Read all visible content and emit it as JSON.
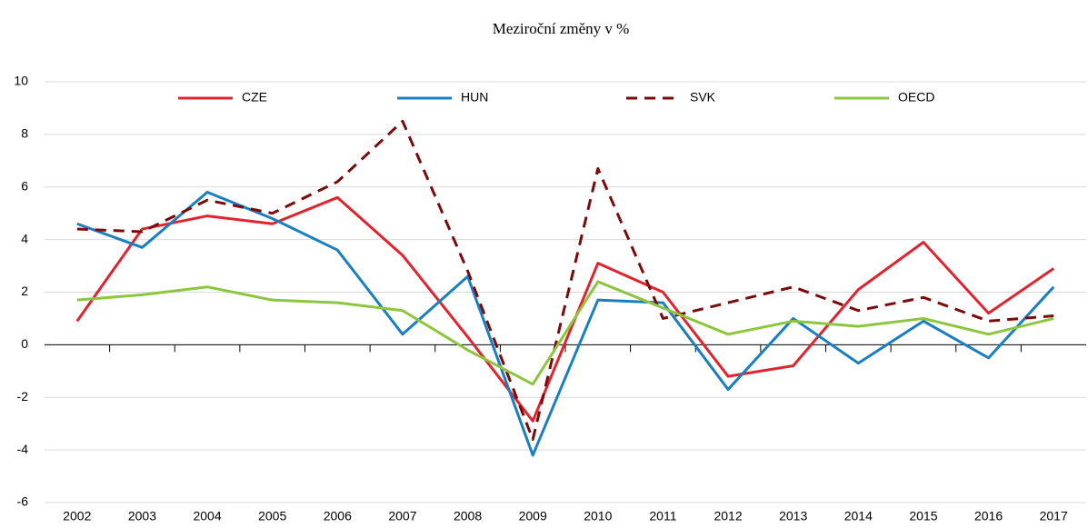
{
  "chart_data": {
    "type": "line",
    "title": "Meziroční změny v %",
    "categories": [
      "2002",
      "2003",
      "2004",
      "2005",
      "2006",
      "2007",
      "2008",
      "2009",
      "2010",
      "2011",
      "2012",
      "2013",
      "2014",
      "2015",
      "2016",
      "2017"
    ],
    "series": [
      {
        "name": "CZE",
        "color": "#e0242f",
        "line_style": "solid",
        "values": [
          0.9,
          4.4,
          4.9,
          4.6,
          5.6,
          3.4,
          0.3,
          -2.9,
          3.1,
          2.0,
          -1.2,
          -0.8,
          2.1,
          3.9,
          1.2,
          2.9
        ]
      },
      {
        "name": "HUN",
        "color": "#1a7fc1",
        "line_style": "solid",
        "values": [
          4.6,
          3.7,
          5.8,
          4.8,
          3.6,
          0.4,
          2.6,
          -4.2,
          1.7,
          1.6,
          -1.7,
          1.0,
          -0.7,
          0.9,
          -0.5,
          2.2
        ]
      },
      {
        "name": "SVK",
        "color": "#7b0a0a",
        "line_style": "dashed",
        "values": [
          4.4,
          4.3,
          5.5,
          5.0,
          6.2,
          8.5,
          2.8,
          -3.6,
          6.7,
          1.0,
          1.6,
          2.2,
          1.3,
          1.8,
          0.9,
          1.1
        ]
      },
      {
        "name": "OECD",
        "color": "#8cc63f",
        "line_style": "solid",
        "values": [
          1.7,
          1.9,
          2.2,
          1.7,
          1.6,
          1.3,
          -0.2,
          -1.5,
          2.4,
          1.4,
          0.4,
          0.9,
          0.7,
          1.0,
          0.4,
          1.0
        ]
      }
    ],
    "ylim": [
      -6,
      10
    ],
    "yticks": [
      -6,
      -4,
      -2,
      0,
      2,
      4,
      6,
      8,
      10
    ],
    "grid": true,
    "legend": "top"
  }
}
